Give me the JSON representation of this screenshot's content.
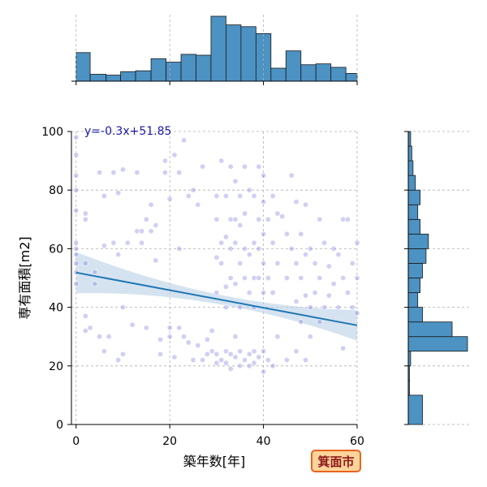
{
  "chart_data": {
    "type": "scatter",
    "xlabel": "築年数[年]",
    "ylabel": "専有面積[m2]",
    "xlim": [
      -1,
      60
    ],
    "ylim": [
      0,
      100
    ],
    "x_ticks": [
      0,
      20,
      40,
      60
    ],
    "y_ticks": [
      0,
      20,
      40,
      60,
      80,
      100
    ],
    "grid": true,
    "annotation": "y=-0.3x+51.85",
    "badge": "箕面市",
    "regression": {
      "slope": -0.3,
      "intercept": 51.85,
      "x_range": [
        0,
        60
      ]
    },
    "marginal_x_histogram": {
      "bin_edges": [
        0,
        3,
        6.4,
        9.5,
        12.7,
        16,
        19.2,
        22.4,
        25.6,
        28.8,
        32,
        35.2,
        38.4,
        41.6,
        44.8,
        48,
        51.2,
        54.4,
        57.6,
        60
      ],
      "counts": [
        33,
        8,
        7,
        11,
        12,
        26,
        22,
        31,
        30,
        75,
        65,
        63,
        55,
        15,
        35,
        19,
        20,
        16,
        9
      ]
    },
    "marginal_y_histogram": {
      "bin_edges": [
        0,
        10,
        15,
        20,
        25,
        30,
        35,
        40,
        45,
        50,
        55,
        60,
        65,
        70,
        75,
        80,
        85,
        90,
        95,
        100
      ],
      "counts": [
        12,
        1,
        1,
        2,
        50,
        37,
        12,
        8,
        10,
        12,
        15,
        17,
        10,
        8,
        10,
        6,
        4,
        3,
        2
      ]
    },
    "points": [
      [
        0,
        98
      ],
      [
        0,
        92
      ],
      [
        0,
        85
      ],
      [
        0,
        80
      ],
      [
        0,
        73
      ],
      [
        0,
        62
      ],
      [
        0,
        60
      ],
      [
        0,
        58
      ],
      [
        0,
        55
      ],
      [
        0,
        52
      ],
      [
        0,
        48
      ],
      [
        2,
        72
      ],
      [
        2,
        70
      ],
      [
        2,
        55
      ],
      [
        2,
        37
      ],
      [
        2,
        32
      ],
      [
        3,
        33
      ],
      [
        4,
        52
      ],
      [
        4,
        48
      ],
      [
        5,
        86
      ],
      [
        6,
        78
      ],
      [
        6,
        61
      ],
      [
        5,
        30
      ],
      [
        6,
        25
      ],
      [
        7,
        30
      ],
      [
        8,
        86
      ],
      [
        8,
        62
      ],
      [
        9,
        79
      ],
      [
        9,
        58
      ],
      [
        10,
        87
      ],
      [
        10,
        40
      ],
      [
        9,
        22
      ],
      [
        10,
        24
      ],
      [
        11,
        62
      ],
      [
        12,
        34
      ],
      [
        13,
        86
      ],
      [
        13,
        66
      ],
      [
        14,
        66
      ],
      [
        14,
        62
      ],
      [
        15,
        70
      ],
      [
        15,
        33
      ],
      [
        16,
        75
      ],
      [
        16,
        66
      ],
      [
        17,
        68
      ],
      [
        17,
        56
      ],
      [
        18,
        29
      ],
      [
        18,
        24
      ],
      [
        19,
        90
      ],
      [
        19,
        86
      ],
      [
        20,
        77
      ],
      [
        20,
        33
      ],
      [
        20,
        30
      ],
      [
        21,
        92
      ],
      [
        21,
        23
      ],
      [
        22,
        86
      ],
      [
        22,
        60
      ],
      [
        22,
        33
      ],
      [
        23,
        97
      ],
      [
        23,
        30
      ],
      [
        24,
        78
      ],
      [
        24,
        28
      ],
      [
        25,
        80
      ],
      [
        25,
        22
      ],
      [
        26,
        75
      ],
      [
        26,
        27
      ],
      [
        27,
        88
      ],
      [
        27,
        22
      ],
      [
        28,
        29
      ],
      [
        28,
        24
      ],
      [
        29,
        32
      ],
      [
        29,
        25
      ],
      [
        30,
        78
      ],
      [
        30,
        70
      ],
      [
        30,
        57
      ],
      [
        30,
        45
      ],
      [
        30,
        24
      ],
      [
        30,
        21
      ],
      [
        31,
        90
      ],
      [
        31,
        62
      ],
      [
        31,
        55
      ],
      [
        31,
        22
      ],
      [
        32,
        78
      ],
      [
        32,
        64
      ],
      [
        32,
        47
      ],
      [
        32,
        40
      ],
      [
        32,
        25
      ],
      [
        32,
        21
      ],
      [
        33,
        88
      ],
      [
        33,
        70
      ],
      [
        33,
        60
      ],
      [
        33,
        50
      ],
      [
        33,
        24
      ],
      [
        33,
        19
      ],
      [
        34,
        83
      ],
      [
        34,
        70
      ],
      [
        34,
        62
      ],
      [
        34,
        48
      ],
      [
        34,
        30
      ],
      [
        34,
        23
      ],
      [
        35,
        78
      ],
      [
        35,
        68
      ],
      [
        35,
        55
      ],
      [
        35,
        40
      ],
      [
        35,
        25
      ],
      [
        35,
        20
      ],
      [
        36,
        88
      ],
      [
        36,
        72
      ],
      [
        36,
        60
      ],
      [
        36,
        50
      ],
      [
        36,
        22
      ],
      [
        37,
        80
      ],
      [
        37,
        58
      ],
      [
        37,
        45
      ],
      [
        37,
        24
      ],
      [
        37,
        20
      ],
      [
        38,
        78
      ],
      [
        38,
        62
      ],
      [
        38,
        50
      ],
      [
        38,
        40
      ],
      [
        38,
        25
      ],
      [
        38,
        21
      ],
      [
        39,
        88
      ],
      [
        39,
        70
      ],
      [
        39,
        60
      ],
      [
        39,
        50
      ],
      [
        39,
        23
      ],
      [
        40,
        85
      ],
      [
        40,
        76
      ],
      [
        40,
        65
      ],
      [
        40,
        55
      ],
      [
        40,
        45
      ],
      [
        40,
        25
      ],
      [
        40,
        18
      ],
      [
        41,
        70
      ],
      [
        41,
        50
      ],
      [
        41,
        22
      ],
      [
        42,
        78
      ],
      [
        42,
        62
      ],
      [
        42,
        45
      ],
      [
        42,
        20
      ],
      [
        43,
        72
      ],
      [
        43,
        55
      ],
      [
        43,
        30
      ],
      [
        44,
        71
      ],
      [
        45,
        65
      ],
      [
        45,
        50
      ],
      [
        45,
        22
      ],
      [
        46,
        85
      ],
      [
        46,
        60
      ],
      [
        47,
        76
      ],
      [
        47,
        55
      ],
      [
        47,
        42
      ],
      [
        47,
        25
      ],
      [
        48,
        65
      ],
      [
        48,
        50
      ],
      [
        48,
        35
      ],
      [
        49,
        75
      ],
      [
        49,
        58
      ],
      [
        49,
        44
      ],
      [
        49,
        22
      ],
      [
        50,
        60
      ],
      [
        50,
        40
      ],
      [
        50,
        30
      ],
      [
        51,
        55
      ],
      [
        51,
        45
      ],
      [
        52,
        70
      ],
      [
        52,
        50
      ],
      [
        52,
        35
      ],
      [
        53,
        62
      ],
      [
        53,
        40
      ],
      [
        54,
        54
      ],
      [
        54,
        44
      ],
      [
        55,
        60
      ],
      [
        55,
        48
      ],
      [
        56,
        58
      ],
      [
        56,
        40
      ],
      [
        57,
        70
      ],
      [
        57,
        50
      ],
      [
        57,
        26
      ],
      [
        58,
        70
      ],
      [
        58,
        45
      ],
      [
        59,
        55
      ],
      [
        59,
        40
      ],
      [
        60,
        62
      ],
      [
        60,
        50
      ],
      [
        60,
        38
      ]
    ]
  }
}
